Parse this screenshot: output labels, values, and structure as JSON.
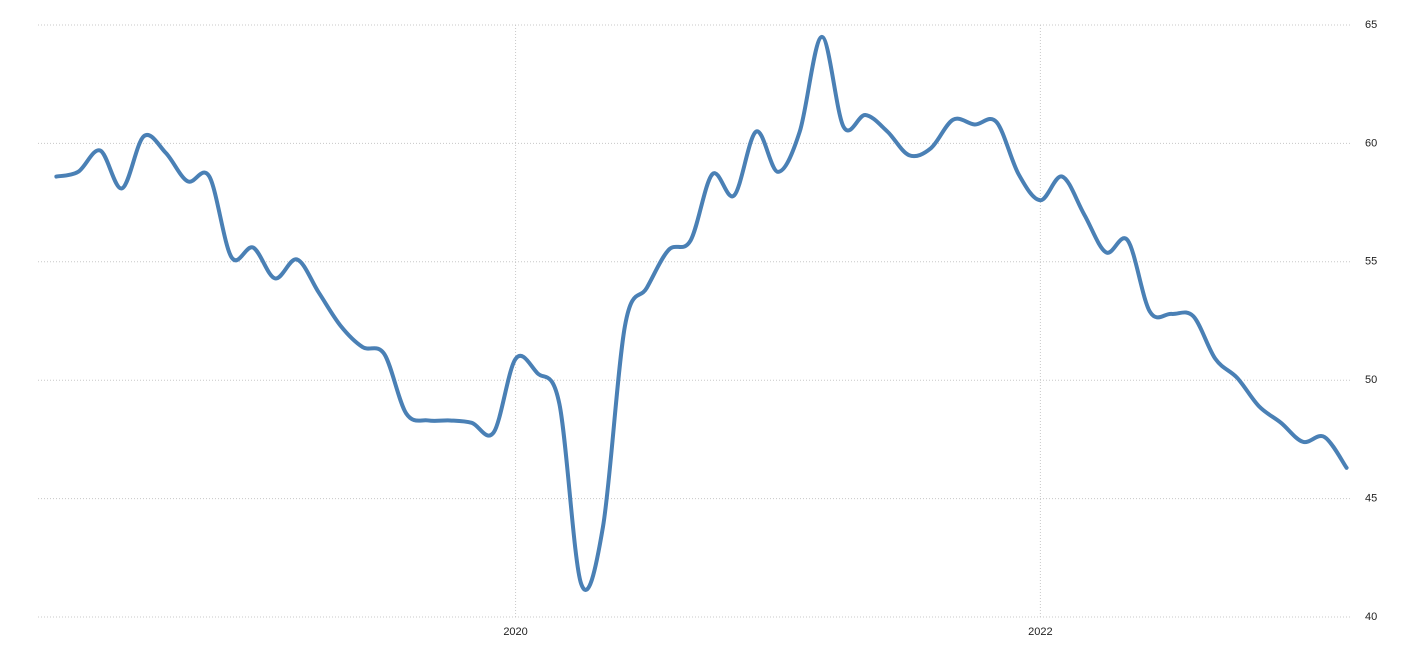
{
  "chart_data": {
    "type": "line",
    "x": [
      2018.25,
      2018.333,
      2018.417,
      2018.5,
      2018.583,
      2018.667,
      2018.75,
      2018.833,
      2018.917,
      2019,
      2019.083,
      2019.167,
      2019.25,
      2019.333,
      2019.417,
      2019.5,
      2019.583,
      2019.667,
      2019.75,
      2019.833,
      2019.917,
      2020,
      2020.083,
      2020.167,
      2020.25,
      2020.333,
      2020.417,
      2020.5,
      2020.583,
      2020.667,
      2020.75,
      2020.833,
      2020.917,
      2021,
      2021.083,
      2021.167,
      2021.25,
      2021.333,
      2021.417,
      2021.5,
      2021.583,
      2021.667,
      2021.75,
      2021.833,
      2021.917,
      2022,
      2022.083,
      2022.167,
      2022.25,
      2022.333,
      2022.417,
      2022.5,
      2022.583,
      2022.667,
      2022.75,
      2022.833,
      2022.917,
      2023,
      2023.083,
      2023.167
    ],
    "series": [
      {
        "color": "#4a80b5",
        "values": [
          58.6,
          58.8,
          59.7,
          58.1,
          60.3,
          59.6,
          58.4,
          58.6,
          55.2,
          55.6,
          54.3,
          55.1,
          53.7,
          52.3,
          51.4,
          51.1,
          48.6,
          48.3,
          48.3,
          48.2,
          47.8,
          50.9,
          50.3,
          49.0,
          41.4,
          43.8,
          52.3,
          53.9,
          55.5,
          55.9,
          58.7,
          57.8,
          60.5,
          58.8,
          60.5,
          64.5,
          60.7,
          61.2,
          60.5,
          59.5,
          59.8,
          61.0,
          60.8,
          60.9,
          58.7,
          57.6,
          58.6,
          57.0,
          55.4,
          55.9,
          52.9,
          52.8,
          52.7,
          50.9,
          50.1,
          48.9,
          48.2,
          47.4,
          47.6,
          46.3
        ]
      }
    ],
    "xlim": [
      2018.18,
      2023.18
    ],
    "xticks": [
      2020,
      2022
    ],
    "ylim": [
      40,
      65
    ],
    "yticks": [
      40,
      45,
      50,
      55,
      60,
      65
    ],
    "grid": true
  }
}
